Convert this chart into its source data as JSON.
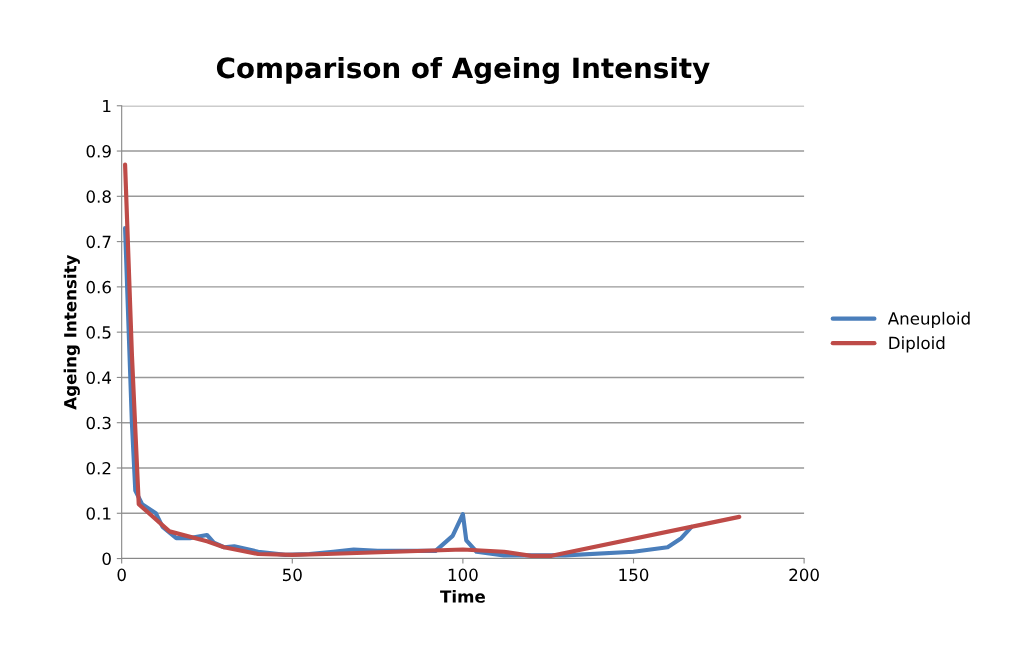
{
  "chart_data": {
    "type": "line",
    "title": "Comparison of Ageing Intensity",
    "xlabel": "Time",
    "ylabel": "Ageing Intensity",
    "xlim": [
      0,
      200
    ],
    "xticks": [
      0,
      50,
      100,
      150,
      200
    ],
    "ylim": [
      0,
      1
    ],
    "yticks": [
      0,
      0.1,
      0.2,
      0.3,
      0.4,
      0.5,
      0.6,
      0.7,
      0.8,
      0.9,
      1
    ],
    "grid": "y",
    "legend": "right",
    "marker": "none",
    "line_style": "solid",
    "series": [
      {
        "name": "Aneuploid",
        "color": "#4a7ebb",
        "x": [
          1,
          3,
          4,
          6,
          10,
          12,
          16,
          20,
          25,
          27,
          30,
          33,
          40,
          48,
          55,
          62,
          68,
          75,
          92,
          97,
          100,
          101,
          104,
          112,
          130,
          150,
          160,
          164,
          167
        ],
        "values": [
          0.73,
          0.3,
          0.15,
          0.12,
          0.1,
          0.07,
          0.045,
          0.045,
          0.052,
          0.035,
          0.025,
          0.027,
          0.015,
          0.008,
          0.01,
          0.015,
          0.02,
          0.017,
          0.017,
          0.05,
          0.098,
          0.04,
          0.015,
          0.007,
          0.007,
          0.015,
          0.025,
          0.045,
          0.07
        ]
      },
      {
        "name": "Diploid",
        "color": "#be4b48",
        "x": [
          1,
          3,
          5,
          8,
          14,
          25,
          30,
          40,
          50,
          60,
          80,
          100,
          112,
          120,
          126,
          181
        ],
        "values": [
          0.87,
          0.45,
          0.12,
          0.1,
          0.06,
          0.038,
          0.025,
          0.01,
          0.008,
          0.01,
          0.015,
          0.02,
          0.015,
          0.006,
          0.006,
          0.092
        ]
      }
    ]
  }
}
